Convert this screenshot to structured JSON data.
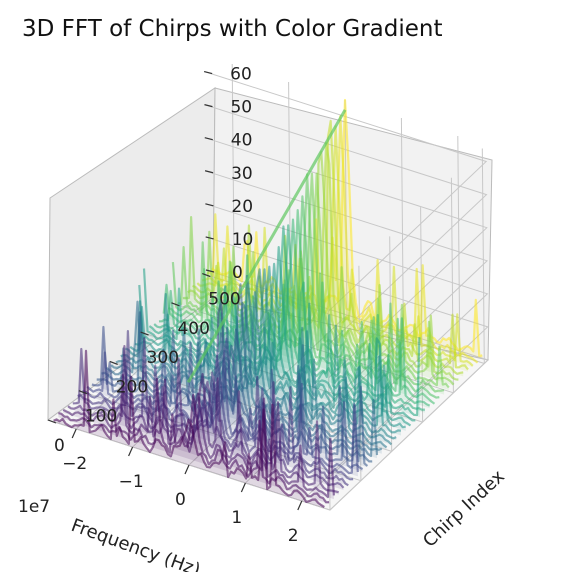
{
  "chart_data": {
    "type": "surface-3d",
    "title": "3D FFT of Chirps with Color Gradient",
    "xlabel": "Frequency (Hz)",
    "ylabel": "Chirp Index",
    "zlabel": "",
    "x_offset_label": "1e7",
    "x_ticks": [
      "−2",
      "−1",
      "0",
      "1",
      "2"
    ],
    "y_ticks": [
      "0",
      "100",
      "200",
      "300",
      "400",
      "500"
    ],
    "z_ticks": [
      "0",
      "10",
      "20",
      "30",
      "40",
      "50",
      "60"
    ],
    "xlim": [
      -2.5,
      2.5
    ],
    "ylim": [
      0,
      512
    ],
    "zlim": [
      0,
      65
    ],
    "colormap": "viridis",
    "color_by": "Chirp Index",
    "grid": true,
    "peak": {
      "frequency_1e7": 0.0,
      "chirp_index": 512,
      "magnitude": 62
    },
    "peak_start_magnitude": 25
  },
  "colors": {
    "pane_left": "#ececec",
    "pane_back": "#f2f2f2",
    "pane_floor": "#f6f6f6",
    "grid": "#c8c8c8",
    "text": "#222222"
  }
}
